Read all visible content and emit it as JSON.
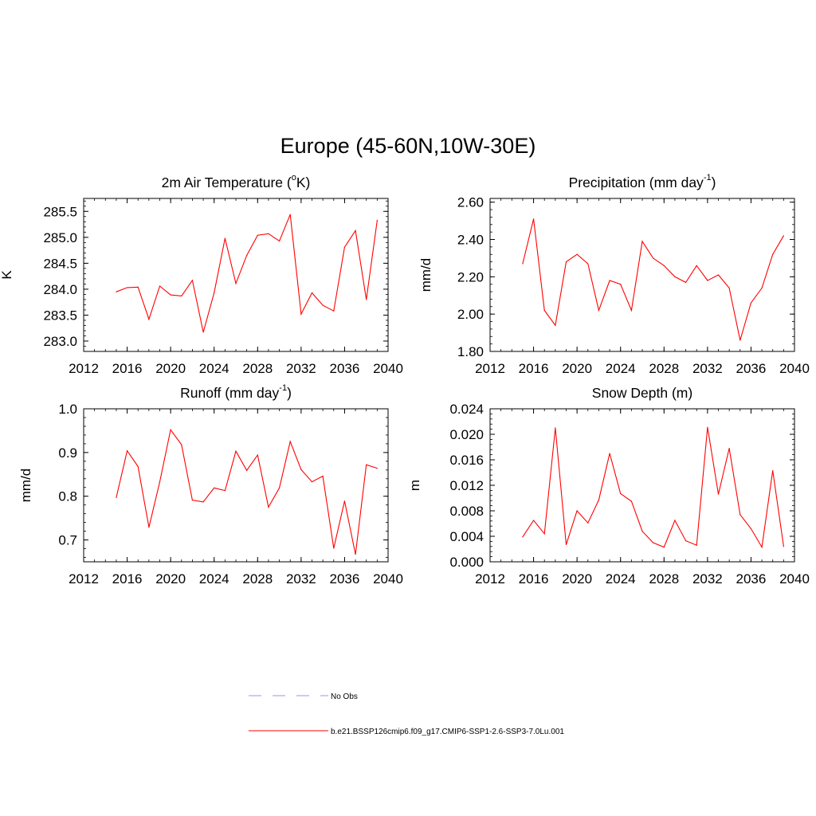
{
  "title": "Europe (45-60N,10W-30E)",
  "legend": [
    {
      "label": "No Obs",
      "color": "#9999dd",
      "style": "dashed"
    },
    {
      "label": "b.e21.BSSP126cmip6.f09_g17.CMIP6-SSP1-2.6-SSP3-7.0Lu.001",
      "color": "#ff0000",
      "style": "solid"
    }
  ],
  "chart_data": [
    {
      "type": "line",
      "title_main": "2m Air Temperature (",
      "title_sup": "o",
      "title_end": "K)",
      "ylabel": "K",
      "xlim": [
        2012,
        2040
      ],
      "xticks": [
        2012,
        2016,
        2020,
        2024,
        2028,
        2032,
        2036,
        2040
      ],
      "ylim": [
        282.8,
        285.75
      ],
      "yticks": [
        283.0,
        283.5,
        284.0,
        284.5,
        285.0,
        285.5
      ],
      "ytick_labels": [
        "283.0",
        "283.5",
        "284.0",
        "284.5",
        "285.0",
        "285.5"
      ],
      "x": [
        2015,
        2016,
        2017,
        2018,
        2019,
        2020,
        2021,
        2022,
        2023,
        2024,
        2025,
        2026,
        2027,
        2028,
        2029,
        2030,
        2031,
        2032,
        2033,
        2034,
        2035,
        2036,
        2037,
        2038,
        2039
      ],
      "series": [
        {
          "color": "#ff0000",
          "values": [
            283.95,
            284.03,
            284.04,
            283.42,
            284.06,
            283.89,
            283.87,
            284.17,
            283.17,
            283.93,
            284.98,
            284.11,
            284.65,
            285.04,
            285.07,
            284.93,
            285.44,
            283.52,
            283.93,
            283.69,
            283.58,
            284.81,
            285.13,
            283.8,
            285.33
          ]
        }
      ]
    },
    {
      "type": "line",
      "title_main": "Precipitation (mm day",
      "title_sup": "-1",
      "title_end": ")",
      "ylabel": "mm/d",
      "xlim": [
        2012,
        2040
      ],
      "xticks": [
        2012,
        2016,
        2020,
        2024,
        2028,
        2032,
        2036,
        2040
      ],
      "ylim": [
        1.8,
        2.62
      ],
      "yticks": [
        1.8,
        2.0,
        2.2,
        2.4,
        2.6
      ],
      "ytick_labels": [
        "1.80",
        "2.00",
        "2.20",
        "2.40",
        "2.60"
      ],
      "x": [
        2015,
        2016,
        2017,
        2018,
        2019,
        2020,
        2021,
        2022,
        2023,
        2024,
        2025,
        2026,
        2027,
        2028,
        2029,
        2030,
        2031,
        2032,
        2033,
        2034,
        2035,
        2036,
        2037,
        2038,
        2039
      ],
      "series": [
        {
          "color": "#ff0000",
          "values": [
            2.27,
            2.51,
            2.02,
            1.94,
            2.28,
            2.32,
            2.27,
            2.02,
            2.18,
            2.16,
            2.02,
            2.39,
            2.3,
            2.26,
            2.2,
            2.17,
            2.26,
            2.18,
            2.21,
            2.14,
            1.86,
            2.06,
            2.14,
            2.32,
            2.42
          ]
        }
      ]
    },
    {
      "type": "line",
      "title_main": "Runoff (mm day",
      "title_sup": "-1",
      "title_end": ")",
      "ylabel": "mm/d",
      "xlim": [
        2012,
        2040
      ],
      "xticks": [
        2012,
        2016,
        2020,
        2024,
        2028,
        2032,
        2036,
        2040
      ],
      "ylim": [
        0.65,
        1.0
      ],
      "yticks": [
        0.7,
        0.8,
        0.9,
        1.0
      ],
      "ytick_labels": [
        "0.7",
        "0.8",
        "0.9",
        "1.0"
      ],
      "x": [
        2015,
        2016,
        2017,
        2018,
        2019,
        2020,
        2021,
        2022,
        2023,
        2024,
        2025,
        2026,
        2027,
        2028,
        2029,
        2030,
        2031,
        2032,
        2033,
        2034,
        2035,
        2036,
        2037,
        2038,
        2039
      ],
      "series": [
        {
          "color": "#ff0000",
          "values": [
            0.797,
            0.904,
            0.868,
            0.729,
            0.833,
            0.952,
            0.918,
            0.791,
            0.787,
            0.819,
            0.813,
            0.903,
            0.859,
            0.894,
            0.775,
            0.819,
            0.925,
            0.861,
            0.833,
            0.846,
            0.681,
            0.789,
            0.667,
            0.872,
            0.864
          ]
        }
      ]
    },
    {
      "type": "line",
      "title_main": "Snow Depth (m)",
      "title_sup": "",
      "title_end": "",
      "ylabel": "m",
      "xlim": [
        2012,
        2040
      ],
      "xticks": [
        2012,
        2016,
        2020,
        2024,
        2028,
        2032,
        2036,
        2040
      ],
      "ylim": [
        0.0,
        0.024
      ],
      "yticks": [
        0.0,
        0.004,
        0.008,
        0.012,
        0.016,
        0.02,
        0.024
      ],
      "ytick_labels": [
        "0.000",
        "0.004",
        "0.008",
        "0.012",
        "0.016",
        "0.020",
        "0.024"
      ],
      "x": [
        2015,
        2016,
        2017,
        2018,
        2019,
        2020,
        2021,
        2022,
        2023,
        2024,
        2025,
        2026,
        2027,
        2028,
        2029,
        2030,
        2031,
        2032,
        2033,
        2034,
        2035,
        2036,
        2037,
        2038,
        2039
      ],
      "series": [
        {
          "color": "#ff0000",
          "values": [
            0.0039,
            0.0065,
            0.0044,
            0.021,
            0.0027,
            0.008,
            0.0061,
            0.0097,
            0.017,
            0.0107,
            0.0095,
            0.0048,
            0.003,
            0.0023,
            0.0065,
            0.0033,
            0.0026,
            0.0211,
            0.0106,
            0.0178,
            0.0074,
            0.0052,
            0.0023,
            0.0143,
            0.0024
          ]
        }
      ]
    }
  ]
}
